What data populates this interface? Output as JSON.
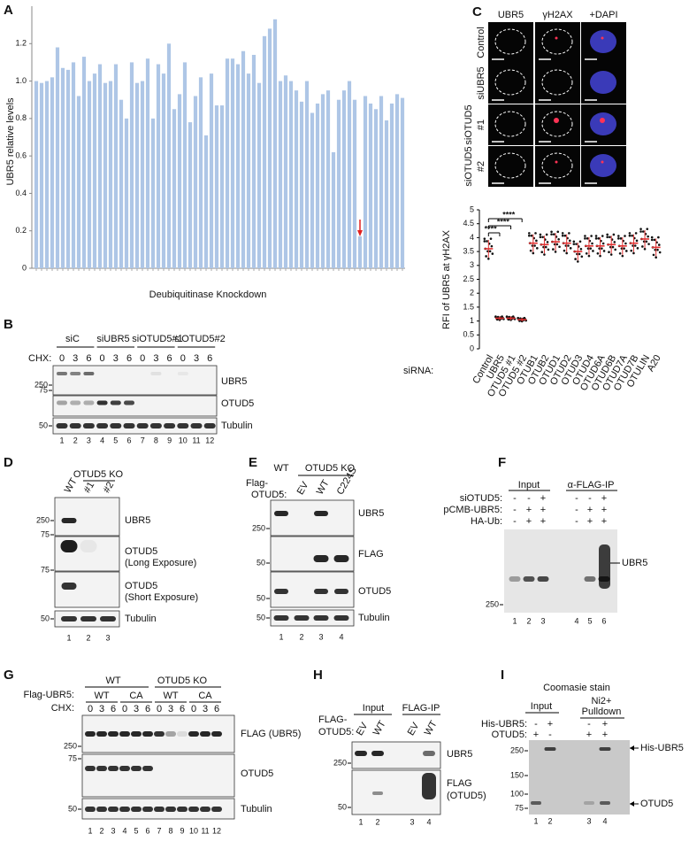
{
  "chart_data": [
    {
      "type": "bar",
      "ylabel": "UBR5 relative levels",
      "xlabel": "Deubiquitinase Knockdown",
      "color": "#aec6e6",
      "values": [
        1.0,
        0.99,
        1.0,
        1.02,
        1.18,
        1.07,
        1.06,
        1.1,
        0.92,
        1.13,
        1.0,
        1.04,
        1.09,
        0.99,
        1.0,
        1.09,
        0.9,
        0.8,
        1.1,
        0.99,
        1.0,
        1.12,
        0.8,
        1.09,
        1.04,
        1.2,
        0.85,
        0.93,
        1.1,
        0.78,
        0.92,
        1.02,
        0.71,
        1.04,
        0.87,
        0.87,
        1.12,
        1.12,
        1.09,
        1.16,
        1.04,
        1.14,
        0.99,
        1.24,
        1.28,
        1.33,
        1.0,
        1.03,
        1.0,
        0.95,
        0.89,
        1.0,
        0.83,
        0.88,
        0.93,
        0.95,
        0.62,
        0.9,
        0.95,
        1.0,
        0.9,
        0.17,
        0.92,
        0.88,
        0.85,
        0.92,
        0.79,
        0.88,
        0.93,
        0.91
      ],
      "ylim": [
        0,
        1.4
      ],
      "yticks": [
        0,
        0.2,
        0.4,
        0.6,
        0.8,
        {
          "value": 1,
          "label": "1.0"
        },
        1.2
      ]
    },
    {
      "type": "dot",
      "ylabel": "RFI of UBR5 at γH2AX",
      "xlabel": "siRNA:",
      "color": "#e03030",
      "categories": [
        "Control",
        "UBR5",
        "OTUD5 #1",
        "OTUD5 #2",
        "OTUB1",
        "OTUB2",
        "OTUD1",
        "OTUD2",
        "OTUD3",
        "OTUD4",
        "OTUD6A",
        "OTUD6B",
        "OTUD7A",
        "OTUD7B",
        "OTULIN",
        "A20"
      ],
      "values": [
        3.6,
        1.1,
        1.1,
        1.05,
        3.8,
        3.75,
        3.85,
        3.8,
        3.5,
        3.7,
        3.7,
        3.75,
        3.7,
        3.8,
        3.95,
        3.65
      ],
      "ylim": [
        0,
        5
      ],
      "yticks": [
        0,
        0.5,
        1,
        1.5,
        2,
        2.5,
        3,
        3.5,
        4,
        4.5,
        5
      ],
      "annotations": [
        "****",
        "****",
        "****"
      ]
    }
  ],
  "panels": {
    "A": {
      "label": "A"
    },
    "B": {
      "label": "B",
      "treatment": "CHX:",
      "groups": [
        "siC",
        "siUBR5",
        "siOTUD5#1",
        "siOTUD5#2"
      ],
      "times": [
        "0",
        "3",
        "6",
        "0",
        "3",
        "6",
        "0",
        "3",
        "6",
        "0",
        "3",
        "6"
      ],
      "blots": [
        "UBR5",
        "OTUD5",
        "Tubulin"
      ],
      "markers": [
        "250",
        "75",
        "50"
      ],
      "lanes": [
        "1",
        "2",
        "3",
        "4",
        "5",
        "6",
        "7",
        "8",
        "9",
        "10",
        "11",
        "12"
      ]
    },
    "C": {
      "label": "C",
      "channels": [
        "UBR5",
        "γH2AX",
        "+DAPI"
      ],
      "rows": [
        "Control",
        "siUBR5",
        "#1",
        "#2"
      ],
      "row_groups": [
        "siOTUD5",
        "siOTUD5"
      ]
    },
    "D": {
      "label": "D",
      "group": "OTUD5 KO",
      "samples": [
        "WT",
        "#1",
        "#2"
      ],
      "blots": [
        "UBR5",
        "OTUD5",
        "(Long Exposure)",
        "OTUD5",
        "(Short Exposure)",
        "Tubulin"
      ],
      "markers": [
        "250",
        "75",
        "75",
        "50"
      ],
      "lanes": [
        "1",
        "2",
        "3"
      ]
    },
    "E": {
      "label": "E",
      "groups": [
        "WT",
        "OTUD5 KO"
      ],
      "treatment": [
        "Flag-",
        "OTUD5:"
      ],
      "conditions": [
        "-",
        "EV",
        "WT",
        "C224S"
      ],
      "blots": [
        "UBR5",
        "FLAG",
        "OTUD5",
        "Tubulin"
      ],
      "markers": [
        "250",
        "50",
        "50",
        "50"
      ],
      "lanes": [
        "1",
        "2",
        "3",
        "4"
      ]
    },
    "F": {
      "label": "F",
      "groups": [
        "Input",
        "α-FLAG-IP"
      ],
      "rows": [
        {
          "name": "siOTUD5:",
          "signs": [
            "-",
            "-",
            "+",
            "-",
            "-",
            "+"
          ]
        },
        {
          "name": "pCMB-UBR5:",
          "signs": [
            "-",
            "+",
            "+",
            "-",
            "+",
            "+"
          ]
        },
        {
          "name": "HA-Ub:",
          "signs": [
            "-",
            "+",
            "+",
            "-",
            "+",
            "+"
          ]
        }
      ],
      "blots": [
        "UBR5"
      ],
      "markers": [
        "250"
      ],
      "lanes": [
        "1",
        "2",
        "3",
        "4",
        "5",
        "6"
      ]
    },
    "G": {
      "label": "G",
      "treatment": [
        "Flag-UBR5:",
        "CHX:"
      ],
      "groups": [
        "WT",
        "OTUD5 KO"
      ],
      "subgroups": [
        "WT",
        "CA",
        "WT",
        "CA"
      ],
      "times": [
        "0",
        "3",
        "6",
        "0",
        "3",
        "6",
        "0",
        "3",
        "6",
        "0",
        "3",
        "6"
      ],
      "blots": [
        "FLAG (UBR5)",
        "OTUD5",
        "Tubulin"
      ],
      "markers": [
        "250",
        "75",
        "50"
      ],
      "lanes": [
        "1",
        "2",
        "3",
        "4",
        "5",
        "6",
        "7",
        "8",
        "9",
        "10",
        "11",
        "12"
      ]
    },
    "H": {
      "label": "H",
      "treatment": [
        "FLAG-",
        "OTUD5:"
      ],
      "groups": [
        "Input",
        "FLAG-IP"
      ],
      "conditions": [
        "EV",
        "WT",
        "EV",
        "WT"
      ],
      "blots": [
        "UBR5",
        "FLAG",
        "(OTUD5)"
      ],
      "markers": [
        "250",
        "50"
      ],
      "lanes": [
        "1",
        "2",
        "3",
        "4"
      ]
    },
    "I": {
      "label": "I",
      "title": "Coomasie stain",
      "groups": [
        "Input",
        "Ni2+",
        "Pulldown"
      ],
      "rows": [
        {
          "name": "His-UBR5:",
          "signs": [
            "-",
            "+",
            "-",
            "+"
          ]
        },
        {
          "name": "OTUD5:",
          "signs": [
            "+",
            "-",
            "+",
            "+"
          ]
        }
      ],
      "bands": [
        "His-UBR5",
        "OTUD5"
      ],
      "markers": [
        "250",
        "150",
        "100",
        "75"
      ],
      "lanes": [
        "1",
        "2",
        "3",
        "4"
      ]
    }
  }
}
